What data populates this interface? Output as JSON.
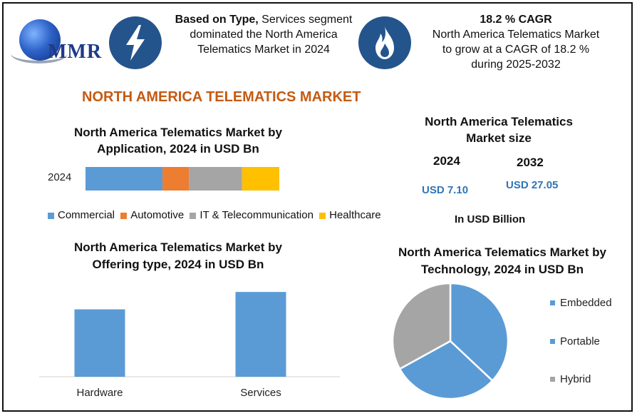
{
  "brand": {
    "logo_text": "MMR"
  },
  "header": {
    "type_bold": "Based on Type,",
    "type_rest_line1": " Services segment",
    "type_line2": "dominated the North America",
    "type_line3": "Telematics Market in 2024",
    "cagr_title": "18.2 % CAGR",
    "cagr_line1": "North America Telematics Market",
    "cagr_line2": "to grow at a CAGR of 18.2 %",
    "cagr_line3": "during 2025-2032"
  },
  "main_title": "NORTH AMERICA TELEMATICS MARKET",
  "market_size": {
    "title_line1": "North America Telematics",
    "title_line2": "Market size",
    "year1": "2024",
    "year2": "2032",
    "value1": "USD 7.10",
    "value2": "USD 27.05",
    "unit_note": "In USD Billion"
  },
  "colors": {
    "blue": "#5b9bd5",
    "orange": "#ed7d31",
    "gray": "#a5a5a5",
    "yellow": "#ffc000",
    "title_orange": "#c55a11",
    "value_blue": "#2e75b6",
    "icon_navy": "#24548c"
  },
  "icons": {
    "type_icon": "lightning-bolt-icon",
    "cagr_icon": "flame-icon",
    "logo": "globe-logo-icon"
  },
  "chart_data": [
    {
      "type": "bar",
      "orientation": "horizontal-stacked",
      "title": "North America Telematics Market by Application, 2024 in USD Bn",
      "title_line1": "North America Telematics Market by",
      "title_line2": "Application, 2024 in USD Bn",
      "categories": [
        "2024"
      ],
      "series": [
        {
          "name": "Commercial",
          "values": [
            2.9
          ],
          "color": "#5b9bd5"
        },
        {
          "name": "Automotive",
          "values": [
            1.0
          ],
          "color": "#ed7d31"
        },
        {
          "name": "IT & Telecommunication",
          "values": [
            2.0
          ],
          "color": "#a5a5a5"
        },
        {
          "name": "Healthcare",
          "values": [
            1.4
          ],
          "color": "#ffc000"
        }
      ],
      "legend": "bottom",
      "grid": false
    },
    {
      "type": "bar",
      "title": "North America Telematics Market by Offering type, 2024 in USD Bn",
      "title_line1": "North America Telematics Market by",
      "title_line2": "Offering type, 2024 in USD Bn",
      "categories": [
        "Hardware",
        "Services"
      ],
      "values": [
        3.1,
        3.9
      ],
      "ylim": [
        0,
        4.2
      ],
      "color": "#5b9bd5",
      "grid": false
    },
    {
      "type": "pie",
      "title": "North America Telematics Market by Technology, 2024 in USD Bn",
      "title_line1": "North America Telematics Market by",
      "title_line2": "Technology, 2024 in USD Bn",
      "labels": [
        "Embedded",
        "Portable",
        "Hybrid"
      ],
      "values": [
        37,
        30,
        33
      ],
      "colors": [
        "#5b9bd5",
        "#5b9bd5",
        "#a5a5a5"
      ],
      "legend": "right"
    }
  ]
}
